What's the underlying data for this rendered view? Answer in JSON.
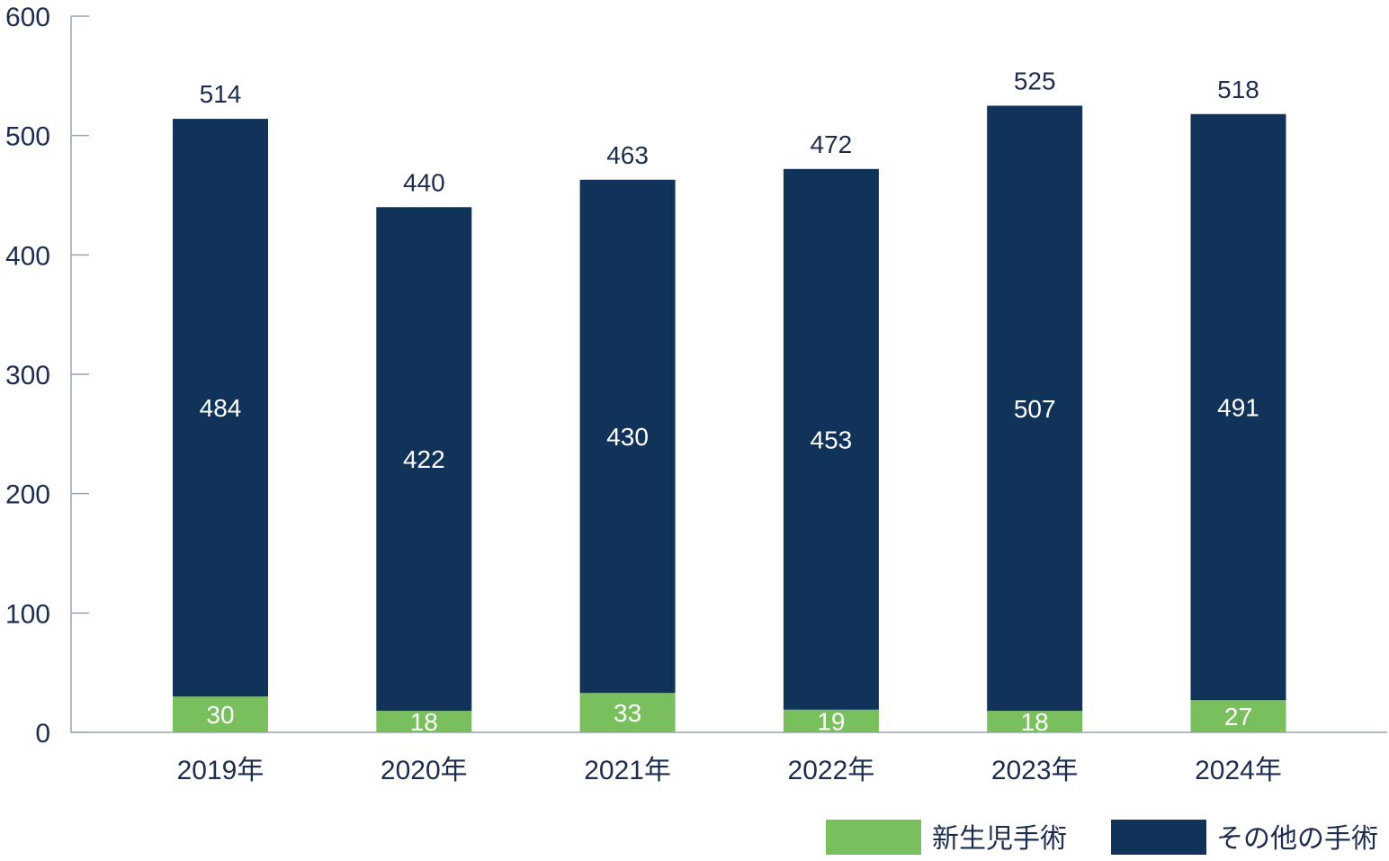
{
  "chart_data": {
    "type": "bar",
    "stacked": true,
    "categories": [
      "2019年",
      "2020年",
      "2021年",
      "2022年",
      "2023年",
      "2024年"
    ],
    "series": [
      {
        "name": "新生児手術",
        "values": [
          30,
          18,
          33,
          19,
          18,
          27
        ],
        "color": "#79bf5e"
      },
      {
        "name": "その他の手術",
        "values": [
          484,
          422,
          430,
          453,
          507,
          491
        ],
        "color": "#11335a"
      }
    ],
    "totals": [
      514,
      440,
      463,
      472,
      525,
      518
    ],
    "ylim": [
      0,
      600
    ],
    "yticks": [
      0,
      100,
      200,
      300,
      400,
      500,
      600
    ],
    "title": "",
    "xlabel": "",
    "ylabel": "",
    "grid": false,
    "legend_position": "bottom-right"
  }
}
